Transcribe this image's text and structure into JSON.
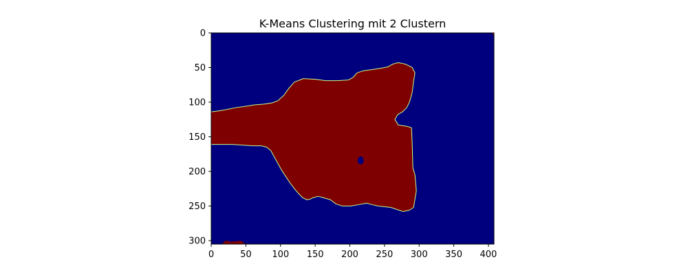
{
  "chart_data": {
    "type": "heatmap",
    "title": "K-Means Clustering mit 2 Clustern",
    "xlabel": "",
    "ylabel": "",
    "image_width": 408,
    "image_height": 305,
    "xlim": [
      0,
      408
    ],
    "ylim": [
      305,
      0
    ],
    "y_axis_inverted": true,
    "grid": false,
    "colormap": "jet",
    "colors": {
      "background_cluster": "#00007f",
      "object_cluster": "#7f0000",
      "edge": "#c8ff8a"
    },
    "x_ticks": [
      0,
      50,
      100,
      150,
      200,
      250,
      300,
      350,
      400
    ],
    "y_ticks": [
      0,
      50,
      100,
      150,
      200,
      250,
      300
    ],
    "regions": [
      {
        "cluster": 1,
        "shape": "main-object",
        "points": [
          [
            0,
            114
          ],
          [
            8,
            113
          ],
          [
            20,
            111
          ],
          [
            35,
            108
          ],
          [
            50,
            106
          ],
          [
            62,
            104
          ],
          [
            75,
            103
          ],
          [
            88,
            101
          ],
          [
            96,
            98
          ],
          [
            105,
            90
          ],
          [
            112,
            80
          ],
          [
            120,
            71
          ],
          [
            133,
            66
          ],
          [
            150,
            67
          ],
          [
            165,
            69
          ],
          [
            182,
            69
          ],
          [
            198,
            68
          ],
          [
            205,
            64
          ],
          [
            210,
            58
          ],
          [
            218,
            55
          ],
          [
            232,
            53
          ],
          [
            245,
            51
          ],
          [
            255,
            49
          ],
          [
            262,
            45
          ],
          [
            270,
            43
          ],
          [
            280,
            45
          ],
          [
            290,
            50
          ],
          [
            294,
            58
          ],
          [
            292,
            70
          ],
          [
            290,
            86
          ],
          [
            286,
            100
          ],
          [
            282,
            108
          ],
          [
            276,
            114
          ],
          [
            269,
            118
          ],
          [
            265,
            125
          ],
          [
            270,
            133
          ],
          [
            283,
            135
          ],
          [
            289,
            137
          ],
          [
            290,
            160
          ],
          [
            291,
            195
          ],
          [
            294,
            205
          ],
          [
            296,
            228
          ],
          [
            292,
            252
          ],
          [
            286,
            256
          ],
          [
            277,
            258
          ],
          [
            268,
            255
          ],
          [
            259,
            252
          ],
          [
            250,
            251
          ],
          [
            241,
            250
          ],
          [
            232,
            248
          ],
          [
            224,
            246
          ],
          [
            213,
            248
          ],
          [
            201,
            250
          ],
          [
            189,
            250
          ],
          [
            180,
            247
          ],
          [
            172,
            241
          ],
          [
            162,
            238
          ],
          [
            154,
            236
          ],
          [
            147,
            238
          ],
          [
            143,
            240
          ],
          [
            138,
            241
          ],
          [
            132,
            238
          ],
          [
            126,
            232
          ],
          [
            120,
            225
          ],
          [
            114,
            217
          ],
          [
            108,
            208
          ],
          [
            102,
            199
          ],
          [
            97,
            190
          ],
          [
            92,
            181
          ],
          [
            86,
            170
          ],
          [
            80,
            165
          ],
          [
            72,
            163
          ],
          [
            60,
            163
          ],
          [
            45,
            162
          ],
          [
            30,
            161
          ],
          [
            15,
            161
          ],
          [
            0,
            161
          ]
        ]
      },
      {
        "cluster": 0,
        "shape": "hole",
        "points": [
          [
            212,
            181
          ],
          [
            215,
            178
          ],
          [
            219,
            180
          ],
          [
            220,
            186
          ],
          [
            217,
            190
          ],
          [
            213,
            189
          ],
          [
            211,
            185
          ]
        ]
      },
      {
        "cluster": 1,
        "shape": "bottom-left-patch",
        "points": [
          [
            16,
            305
          ],
          [
            19,
            301
          ],
          [
            23,
            300
          ],
          [
            28,
            302
          ],
          [
            32,
            301
          ],
          [
            37,
            301
          ],
          [
            41,
            300
          ],
          [
            44,
            301
          ],
          [
            47,
            303
          ],
          [
            49,
            305
          ]
        ]
      },
      {
        "cluster": 1,
        "shape": "top-right-dot",
        "points": [
          [
            406,
            0
          ],
          [
            408,
            0
          ],
          [
            408,
            3
          ],
          [
            406,
            3
          ]
        ]
      }
    ]
  }
}
